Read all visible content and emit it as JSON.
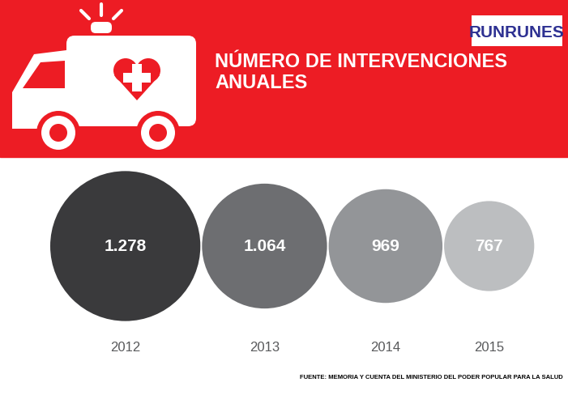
{
  "chart_data": {
    "type": "bubble",
    "title": "NÚMERO DE INTERVENCIONES ANUALES",
    "categories": [
      "2012",
      "2013",
      "2014",
      "2015"
    ],
    "values": [
      1278,
      1064,
      969,
      767
    ],
    "value_labels": [
      "1.278",
      "1.064",
      "969",
      "767"
    ],
    "colors": [
      "#3a3a3c",
      "#6d6e71",
      "#939598",
      "#bcbec0"
    ],
    "data_labels": true,
    "annotations": [
      "RUNRUNES",
      "FUENTE: MEMORIA Y CUENTA DEL MINISTERIO DEL PODER POPULAR PARA LA SALUD"
    ]
  }
}
